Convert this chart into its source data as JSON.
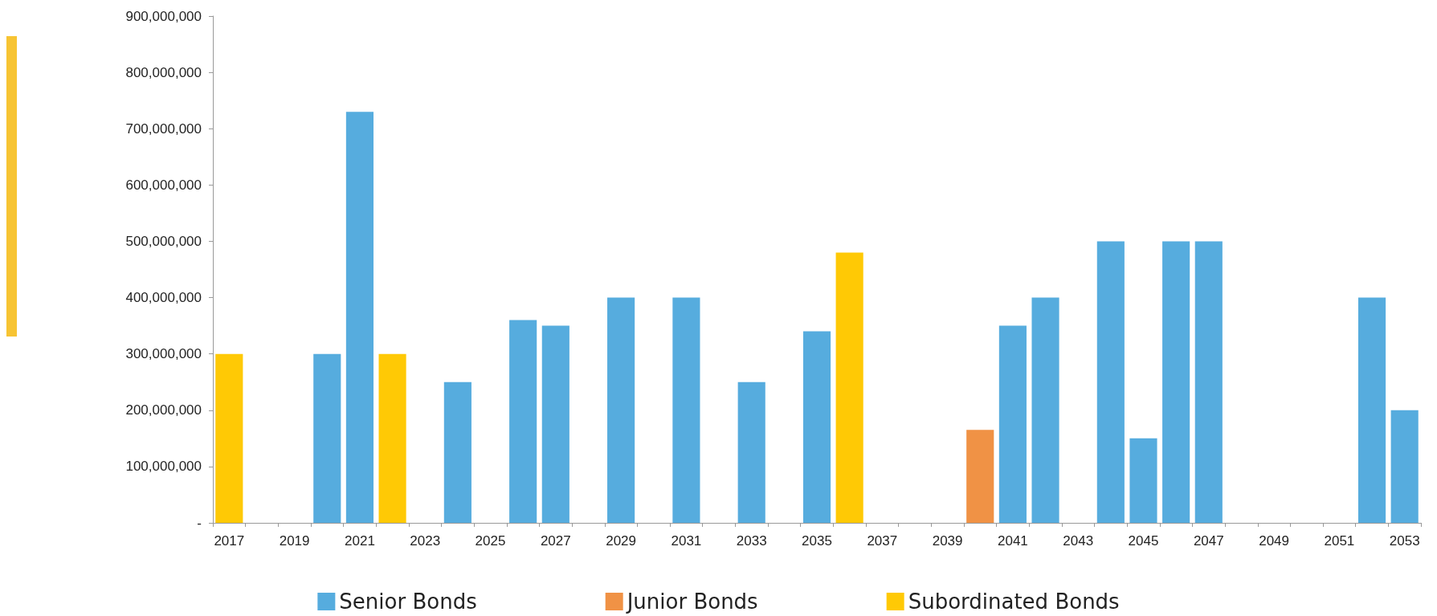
{
  "chart_data": {
    "type": "bar",
    "stacked": true,
    "categories": [
      "2017",
      null,
      "2019",
      null,
      "2021",
      null,
      "2023",
      null,
      "2025",
      null,
      "2027",
      null,
      "2029",
      null,
      "2031",
      null,
      "2033",
      null,
      "2035",
      null,
      "2037",
      null,
      "2039",
      null,
      "2041",
      null,
      "2043",
      null,
      "2045",
      null,
      "2047",
      null,
      "2049",
      null,
      "2051",
      null,
      "2053"
    ],
    "series": [
      {
        "name": "Senior Bonds",
        "color": "#56acde",
        "values": [
          null,
          null,
          null,
          300000000,
          730000000,
          null,
          null,
          250000000,
          null,
          360000000,
          350000000,
          null,
          400000000,
          null,
          400000000,
          null,
          250000000,
          null,
          340000000,
          null,
          null,
          null,
          null,
          null,
          350000000,
          400000000,
          null,
          500000000,
          150000000,
          500000000,
          500000000,
          null,
          null,
          null,
          null,
          400000000,
          200000000
        ]
      },
      {
        "name": "Junior Bonds",
        "color": "#f09245",
        "values": [
          null,
          null,
          null,
          null,
          null,
          null,
          null,
          null,
          null,
          null,
          null,
          null,
          null,
          null,
          null,
          null,
          null,
          null,
          null,
          null,
          null,
          null,
          null,
          165000000,
          null,
          null,
          null,
          null,
          null,
          null,
          null,
          null,
          null,
          null,
          null,
          null,
          null
        ]
      },
      {
        "name": "Subordinated Bonds",
        "color": "#ffc905",
        "values": [
          300000000,
          null,
          null,
          null,
          null,
          300000000,
          null,
          null,
          null,
          null,
          null,
          null,
          null,
          null,
          null,
          null,
          null,
          null,
          null,
          480000000,
          null,
          null,
          null,
          null,
          null,
          null,
          null,
          null,
          null,
          null,
          null,
          null,
          null,
          null,
          null,
          null,
          null
        ]
      }
    ],
    "ylim": [
      0,
      900000000
    ],
    "yticks": [
      {
        "value": 0,
        "label": "-"
      },
      {
        "value": 100000000,
        "label": "100,000,000"
      },
      {
        "value": 200000000,
        "label": "200,000,000"
      },
      {
        "value": 300000000,
        "label": "300,000,000"
      },
      {
        "value": 400000000,
        "label": "400,000,000"
      },
      {
        "value": 500000000,
        "label": "500,000,000"
      },
      {
        "value": 600000000,
        "label": "600,000,000"
      },
      {
        "value": 700000000,
        "label": "700,000,000"
      },
      {
        "value": 800000000,
        "label": "800,000,000"
      },
      {
        "value": 900000000,
        "label": "900,000,000"
      }
    ],
    "grid": false,
    "legend": "bottom"
  }
}
